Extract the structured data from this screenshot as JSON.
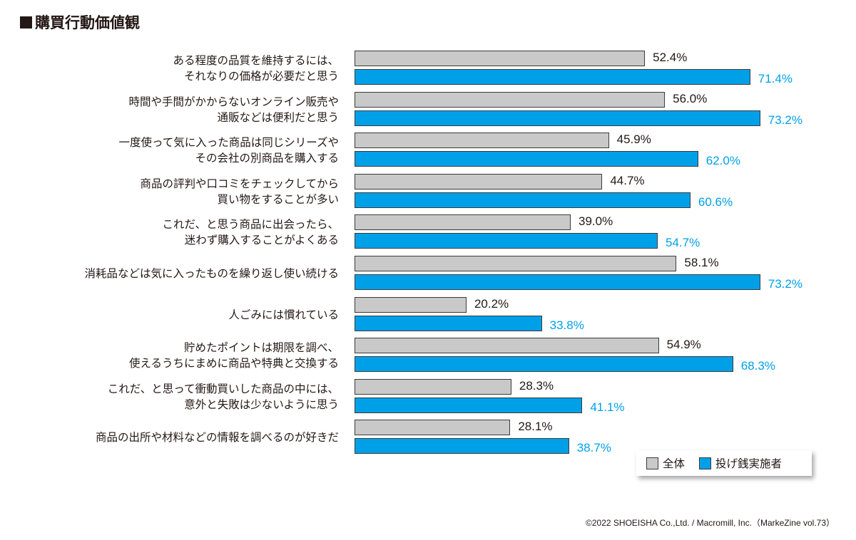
{
  "title": "購買行動価値観",
  "colors": {
    "total": "#c9c9c9",
    "tip": "#00a0e9",
    "text": "#231815"
  },
  "legend": {
    "total_label": "全体",
    "tip_label": "投げ銭実施者"
  },
  "credit": "©2022 SHOEISHA Co.,Ltd. / Macromill, Inc.（MarkeZine vol.73）",
  "chart_data": {
    "type": "bar",
    "orientation": "horizontal",
    "title": "購買行動価値観",
    "xlabel": "",
    "ylabel": "",
    "unit": "%",
    "xlim": [
      0,
      100
    ],
    "grid": false,
    "legend_position": "bottom-right",
    "categories": [
      [
        "ある程度の品質を維持するには、",
        "それなりの価格が必要だと思う"
      ],
      [
        "時間や手間がかからないオンライン販売や",
        "通販などは便利だと思う"
      ],
      [
        "一度使って気に入った商品は同じシリーズや",
        "その会社の別商品を購入する"
      ],
      [
        "商品の評判や口コミをチェックしてから",
        "買い物をすることが多い"
      ],
      [
        "これだ、と思う商品に出会ったら、",
        "迷わず購入することがよくある"
      ],
      [
        "消耗品などは気に入ったものを繰り返し使い続ける"
      ],
      [
        "人ごみには慣れている"
      ],
      [
        "貯めたポイントは期限を調べ、",
        "使えるうちにまめに商品や特典と交換する"
      ],
      [
        "これだ、と思って衝動買いした商品の中には、",
        "意外と失敗は少ないように思う"
      ],
      [
        "商品の出所や材料などの情報を調べるのが好きだ"
      ]
    ],
    "series": [
      {
        "name": "全体",
        "key": "total",
        "values": [
          52.4,
          56.0,
          45.9,
          44.7,
          39.0,
          58.1,
          20.2,
          54.9,
          28.3,
          28.1
        ]
      },
      {
        "name": "投げ銭実施者",
        "key": "tip",
        "values": [
          71.4,
          73.2,
          62.0,
          60.6,
          54.7,
          73.2,
          33.8,
          68.3,
          41.1,
          38.7
        ]
      }
    ]
  }
}
